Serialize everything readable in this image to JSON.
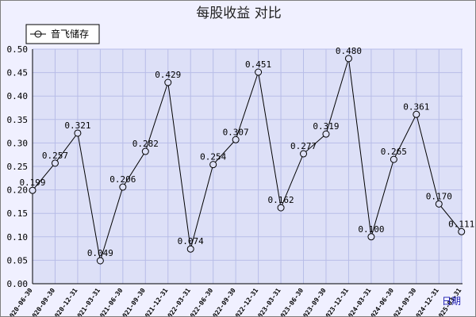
{
  "chart_data": {
    "type": "line",
    "title": "每股收益  对比",
    "x_unit_label": "日期",
    "ylim": [
      0,
      0.5
    ],
    "yticks": [
      "0.00",
      "0.05",
      "0.10",
      "0.15",
      "0.20",
      "0.25",
      "0.30",
      "0.35",
      "0.40",
      "0.45",
      "0.50"
    ],
    "grid": true,
    "legend_position": "top-left",
    "categories": [
      "2020-06-30",
      "2020-09-30",
      "2020-12-31",
      "2021-03-31",
      "2021-06-30",
      "2021-09-30",
      "2021-12-31",
      "2022-03-31",
      "2022-06-30",
      "2022-09-30",
      "2022-12-31",
      "2023-03-31",
      "2023-06-30",
      "2023-09-30",
      "2023-12-31",
      "2024-03-31",
      "2024-06-30",
      "2024-09-30",
      "2024-12-31",
      "2025-03-31"
    ],
    "series": [
      {
        "name": "音飞储存",
        "values": [
          0.199,
          0.257,
          0.321,
          0.049,
          0.206,
          0.282,
          0.429,
          0.074,
          0.254,
          0.307,
          0.451,
          0.162,
          0.277,
          0.319,
          0.48,
          0.1,
          0.265,
          0.361,
          0.17,
          0.111
        ],
        "labels": [
          "0.199",
          "0.257",
          "0.321",
          "0.049",
          "0.206",
          "0.282",
          "0.429",
          "0.074",
          "0.254",
          "0.307",
          "0.451",
          "0.162",
          "0.277",
          "0.319",
          "0.480",
          "0.100",
          "0.265",
          "0.361",
          "0.170",
          "0.111"
        ]
      }
    ],
    "colors": {
      "background": "#f0f0ff",
      "plot": "#dde0f7",
      "grid": "#b8bde8",
      "line": "#000000",
      "unit": "#1a1ab0"
    }
  }
}
